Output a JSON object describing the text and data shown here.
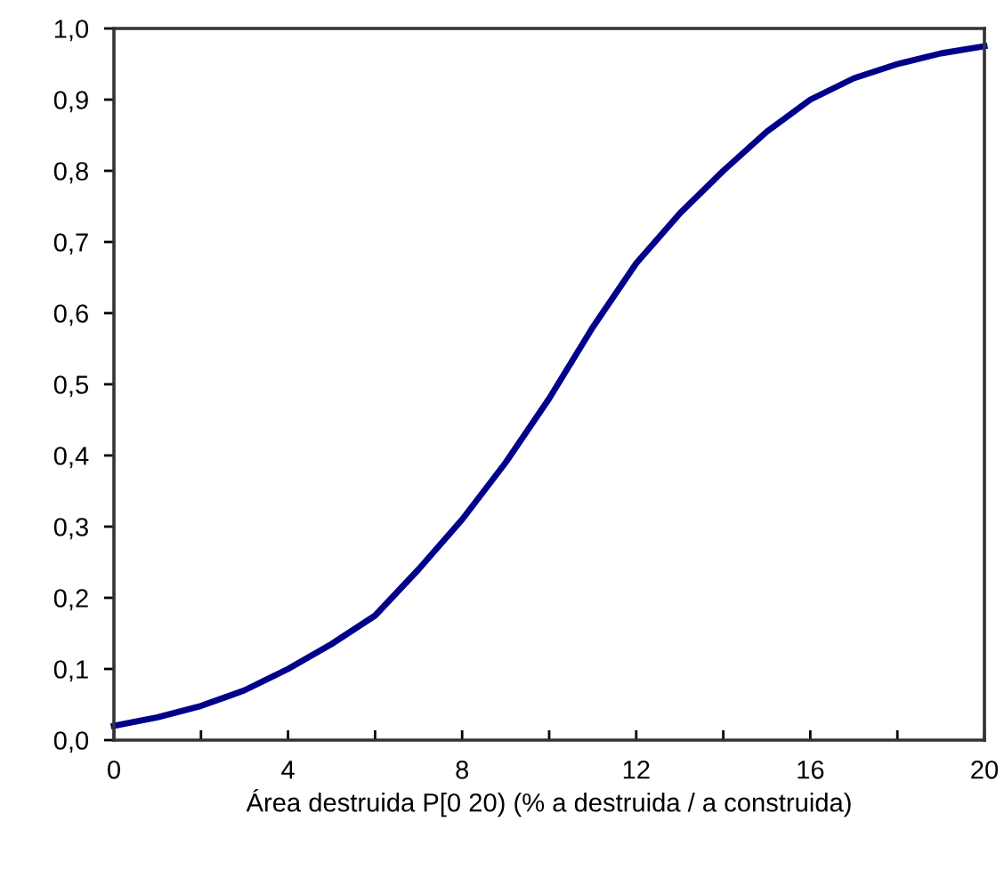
{
  "chart_data": {
    "type": "line",
    "xlabel": "Área destruida P[0 20) (% a destruida / a construida)",
    "x": [
      0,
      1,
      2,
      3,
      4,
      5,
      6,
      7,
      8,
      9,
      10,
      11,
      12,
      13,
      14,
      15,
      16,
      17,
      18,
      19,
      20
    ],
    "series": [
      {
        "color": "#00008b",
        "values": [
          0.02,
          0.032,
          0.048,
          0.07,
          0.1,
          0.135,
          0.175,
          0.24,
          0.31,
          0.39,
          0.48,
          0.58,
          0.67,
          0.74,
          0.8,
          0.855,
          0.9,
          0.93,
          0.95,
          0.965,
          0.975
        ]
      }
    ],
    "xlim": [
      0,
      20
    ],
    "xticks": [
      0,
      {
        "value": 2,
        "label": null
      },
      4,
      {
        "value": 6,
        "label": null
      },
      8,
      {
        "value": 10,
        "label": null
      },
      12,
      {
        "value": 14,
        "label": null
      },
      16,
      {
        "value": 18,
        "label": null
      },
      20
    ],
    "ylim": [
      0,
      1
    ],
    "yticks": [
      {
        "value": 0,
        "label": "0,0"
      },
      {
        "value": 0.1,
        "label": "0,1"
      },
      {
        "value": 0.2,
        "label": "0,2"
      },
      {
        "value": 0.3,
        "label": "0,3"
      },
      {
        "value": 0.4,
        "label": "0,4"
      },
      {
        "value": 0.5,
        "label": "0,5"
      },
      {
        "value": 0.6,
        "label": "0,6"
      },
      {
        "value": 0.7,
        "label": "0,7"
      },
      {
        "value": 0.8,
        "label": "0,8"
      },
      {
        "value": 0.9,
        "label": "0,9"
      },
      {
        "value": 1,
        "label": "1,0"
      }
    ],
    "grid": false,
    "marker": "none",
    "line_style": "solid"
  }
}
